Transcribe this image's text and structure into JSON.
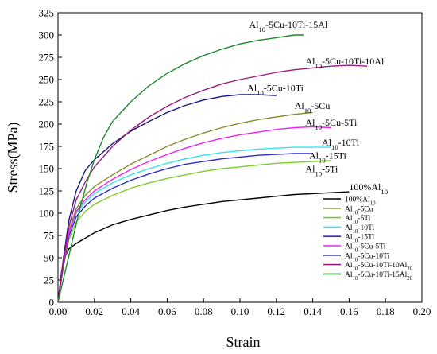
{
  "chart_data": {
    "type": "line",
    "title": "",
    "xlabel": "Strain",
    "ylabel": "Stress(MPa)",
    "xlim": [
      0,
      0.2
    ],
    "ylim": [
      0,
      325
    ],
    "xticks": [
      0.0,
      0.02,
      0.04,
      0.06,
      0.08,
      0.1,
      0.12,
      0.14,
      0.16,
      0.18,
      0.2
    ],
    "yticks": [
      0,
      25,
      50,
      75,
      100,
      125,
      150,
      175,
      200,
      225,
      250,
      275,
      300,
      325
    ],
    "legend_placement": "bottom-right",
    "grid": false,
    "series": [
      {
        "name": "100%Al10",
        "legend_parts": [
          [
            "100%Al",
            ""
          ],
          [
            "10",
            "sub"
          ]
        ],
        "color": "#000000",
        "x": [
          0,
          0.002,
          0.004,
          0.006,
          0.01,
          0.02,
          0.03,
          0.04,
          0.05,
          0.06,
          0.07,
          0.08,
          0.09,
          0.1,
          0.11,
          0.12,
          0.13,
          0.14,
          0.15,
          0.16
        ],
        "y": [
          0,
          35,
          52,
          60,
          66,
          78,
          87,
          93,
          98,
          103,
          107,
          110,
          113,
          115,
          117,
          119,
          121,
          122,
          123,
          124
        ]
      },
      {
        "name": "Al10-5Cu",
        "legend_parts": [
          [
            "Al",
            ""
          ],
          [
            "10",
            "sub"
          ],
          [
            "-5Cu",
            ""
          ]
        ],
        "color": "#8b8b2e",
        "x": [
          0,
          0.003,
          0.006,
          0.01,
          0.015,
          0.02,
          0.03,
          0.04,
          0.05,
          0.06,
          0.07,
          0.08,
          0.09,
          0.1,
          0.11,
          0.12,
          0.13,
          0.14
        ],
        "y": [
          0,
          45,
          80,
          105,
          120,
          130,
          143,
          155,
          165,
          175,
          183,
          190,
          196,
          201,
          205,
          208,
          211,
          213
        ]
      },
      {
        "name": "Al10-5Ti",
        "legend_parts": [
          [
            "Al",
            ""
          ],
          [
            "10",
            "sub"
          ],
          [
            "-5Ti",
            ""
          ]
        ],
        "color": "#7ccd2a",
        "x": [
          0,
          0.003,
          0.006,
          0.01,
          0.015,
          0.02,
          0.03,
          0.04,
          0.05,
          0.06,
          0.07,
          0.08,
          0.09,
          0.1,
          0.11,
          0.12,
          0.13,
          0.14,
          0.15
        ],
        "y": [
          0,
          40,
          70,
          90,
          102,
          110,
          120,
          128,
          134,
          139,
          143,
          147,
          150,
          152,
          154,
          156,
          157,
          158,
          159
        ]
      },
      {
        "name": "Al10-10Ti",
        "legend_parts": [
          [
            "Al",
            ""
          ],
          [
            "10",
            "sub"
          ],
          [
            "-10Ti",
            ""
          ]
        ],
        "color": "#33e3f0",
        "x": [
          0,
          0.003,
          0.006,
          0.01,
          0.015,
          0.02,
          0.03,
          0.04,
          0.05,
          0.06,
          0.07,
          0.08,
          0.09,
          0.1,
          0.11,
          0.12,
          0.13,
          0.14,
          0.15
        ],
        "y": [
          0,
          45,
          78,
          100,
          112,
          122,
          134,
          143,
          150,
          156,
          161,
          165,
          168,
          170,
          172,
          173,
          174,
          174,
          174
        ]
      },
      {
        "name": "Al10-15Ti",
        "legend_parts": [
          [
            "Al",
            ""
          ],
          [
            "10",
            "sub"
          ],
          [
            "-15Ti",
            ""
          ]
        ],
        "color": "#2c2cc8",
        "x": [
          0,
          0.003,
          0.006,
          0.01,
          0.015,
          0.02,
          0.03,
          0.04,
          0.05,
          0.06,
          0.07,
          0.08,
          0.09,
          0.1,
          0.11,
          0.12,
          0.13,
          0.14
        ],
        "y": [
          0,
          42,
          74,
          96,
          108,
          117,
          128,
          137,
          144,
          150,
          155,
          158,
          161,
          163,
          165,
          166,
          167,
          167
        ]
      },
      {
        "name": "Al10-5Cu-5Ti",
        "legend_parts": [
          [
            "Al",
            ""
          ],
          [
            "10",
            "sub"
          ],
          [
            "-5Cu-5Ti",
            ""
          ]
        ],
        "color": "#f020f0",
        "x": [
          0,
          0.003,
          0.006,
          0.01,
          0.015,
          0.02,
          0.03,
          0.04,
          0.05,
          0.06,
          0.07,
          0.08,
          0.09,
          0.1,
          0.11,
          0.12,
          0.13,
          0.14,
          0.15
        ],
        "y": [
          0,
          45,
          78,
          102,
          115,
          125,
          138,
          149,
          158,
          166,
          173,
          179,
          184,
          188,
          191,
          194,
          196,
          197,
          196
        ]
      },
      {
        "name": "Al10-5Cu-10Ti",
        "legend_parts": [
          [
            "Al",
            ""
          ],
          [
            "10",
            "sub"
          ],
          [
            "-5Cu-10Ti",
            ""
          ]
        ],
        "color": "#161680",
        "x": [
          0,
          0.003,
          0.006,
          0.01,
          0.015,
          0.02,
          0.03,
          0.04,
          0.05,
          0.06,
          0.07,
          0.08,
          0.09,
          0.1,
          0.11,
          0.12
        ],
        "y": [
          0,
          50,
          92,
          125,
          148,
          160,
          178,
          192,
          203,
          213,
          221,
          227,
          231,
          233,
          233,
          232
        ]
      },
      {
        "name": "Al10-5Cu-10Ti-10Al20",
        "legend_parts": [
          [
            "Al",
            ""
          ],
          [
            "10",
            "sub"
          ],
          [
            "-5Cu-10Ti-10Al",
            ""
          ],
          [
            "20",
            "sub"
          ]
        ],
        "color": "#9c1a78",
        "x": [
          0,
          0.003,
          0.006,
          0.01,
          0.015,
          0.02,
          0.03,
          0.04,
          0.05,
          0.06,
          0.07,
          0.08,
          0.09,
          0.1,
          0.11,
          0.12,
          0.13,
          0.14,
          0.15,
          0.16,
          0.17
        ],
        "y": [
          0,
          48,
          85,
          115,
          135,
          152,
          175,
          193,
          208,
          220,
          230,
          238,
          245,
          250,
          254,
          258,
          261,
          263,
          265,
          266,
          265
        ]
      },
      {
        "name": "Al10-5Cu-10Ti-15Al20",
        "legend_parts": [
          [
            "Al",
            ""
          ],
          [
            "10",
            "sub"
          ],
          [
            "-5Cu-10Ti-15Al",
            ""
          ],
          [
            "20",
            "sub"
          ]
        ],
        "color": "#1f8a2a",
        "x": [
          0,
          0.004,
          0.008,
          0.012,
          0.016,
          0.02,
          0.025,
          0.03,
          0.04,
          0.05,
          0.06,
          0.07,
          0.08,
          0.09,
          0.1,
          0.11,
          0.12,
          0.13,
          0.135
        ],
        "y": [
          0,
          35,
          70,
          105,
          135,
          160,
          185,
          203,
          225,
          243,
          257,
          268,
          277,
          284,
          290,
          294,
          297,
          300,
          300
        ]
      }
    ],
    "annotations": [
      {
        "parts": [
          [
            "Al",
            ""
          ],
          [
            "10",
            "sub"
          ],
          [
            "-5Cu-10Ti-15Al",
            ""
          ]
        ],
        "x": 0.105,
        "y": 308
      },
      {
        "parts": [
          [
            "Al",
            ""
          ],
          [
            "10",
            "sub"
          ],
          [
            "-5Cu-10Ti-10Al",
            ""
          ]
        ],
        "x": 0.136,
        "y": 267
      },
      {
        "parts": [
          [
            "Al",
            ""
          ],
          [
            "10",
            "sub"
          ],
          [
            "-5Cu-10Ti",
            ""
          ]
        ],
        "x": 0.104,
        "y": 237
      },
      {
        "parts": [
          [
            "Al",
            ""
          ],
          [
            "10",
            "sub"
          ],
          [
            "-5Cu",
            ""
          ]
        ],
        "x": 0.13,
        "y": 217
      },
      {
        "parts": [
          [
            "Al",
            ""
          ],
          [
            "10",
            "sub"
          ],
          [
            "-5Cu-5Ti",
            ""
          ]
        ],
        "x": 0.136,
        "y": 198
      },
      {
        "parts": [
          [
            "Al",
            ""
          ],
          [
            "10",
            "sub"
          ],
          [
            "-10Ti",
            ""
          ]
        ],
        "x": 0.145,
        "y": 176
      },
      {
        "parts": [
          [
            "Al",
            ""
          ],
          [
            "10",
            "sub"
          ],
          [
            "-15Ti",
            ""
          ]
        ],
        "x": 0.138,
        "y": 161
      },
      {
        "parts": [
          [
            "Al",
            ""
          ],
          [
            "10",
            "sub"
          ],
          [
            "-5Ti",
            ""
          ]
        ],
        "x": 0.136,
        "y": 146
      },
      {
        "parts": [
          [
            "100%Al",
            ""
          ],
          [
            "10",
            "sub"
          ]
        ],
        "x": 0.16,
        "y": 126
      }
    ]
  }
}
